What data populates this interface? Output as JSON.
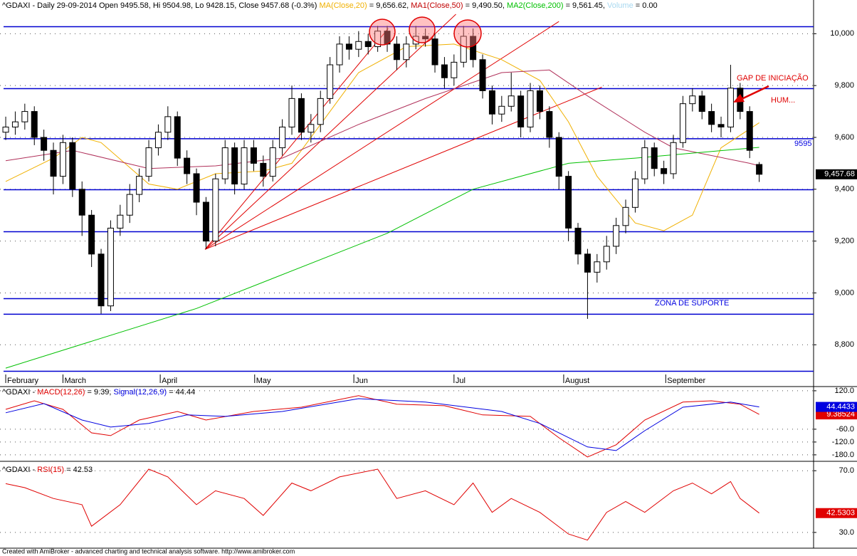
{
  "chart_data": [
    {
      "type": "candlestick",
      "title": "^GDAXI - Daily 29-09-2014 Open 9495.58, Hi 9504.98, Lo 9428.15, Close 9457.68 (-0.3%)",
      "volume_name": "Volume",
      "volume_readout": "= 0.00",
      "open": [
        9620,
        9640,
        9660,
        9700,
        9600,
        9550,
        9450,
        9580,
        9400,
        9300,
        9150,
        8950,
        9250,
        9300,
        9380,
        9450,
        9560,
        9620,
        9680,
        9520,
        9460,
        9350,
        9200,
        9440,
        9560,
        9420,
        9560,
        9500,
        9450,
        9560,
        9640,
        9750,
        9620,
        9650,
        9750,
        9880,
        9960,
        9940,
        9970,
        9950,
        10010,
        9960,
        9900,
        9960,
        9990,
        9980,
        9880,
        9830,
        9890,
        9990,
        9900,
        9780,
        9690,
        9720,
        9760,
        9640,
        9780,
        9700,
        9600,
        9450,
        9250,
        9150,
        9080,
        9120,
        9180,
        9260,
        9330,
        9440,
        9560,
        9480,
        9460,
        9580,
        9730,
        9760,
        9700,
        9650,
        9640,
        9790,
        9700,
        9495.58
      ],
      "high": [
        9680,
        9700,
        9730,
        9720,
        9630,
        9580,
        9610,
        9600,
        9430,
        9320,
        9170,
        9280,
        9340,
        9420,
        9480,
        9590,
        9650,
        9720,
        9700,
        9550,
        9480,
        9370,
        9460,
        9590,
        9580,
        9590,
        9590,
        9530,
        9590,
        9670,
        9800,
        9770,
        9690,
        9780,
        9910,
        9990,
        9990,
        10010,
        10000,
        10030,
        10030,
        9990,
        9990,
        10030,
        10020,
        10000,
        9910,
        9920,
        10030,
        10020,
        9920,
        9800,
        9760,
        9850,
        9780,
        9810,
        9800,
        9720,
        9620,
        9470,
        9270,
        9170,
        9150,
        9220,
        9290,
        9360,
        9470,
        9590,
        9580,
        9510,
        9610,
        9760,
        9790,
        9780,
        9730,
        9680,
        9880,
        9810,
        9720,
        9504.98
      ],
      "low": [
        9590,
        9610,
        9630,
        9570,
        9510,
        9380,
        9420,
        9370,
        9220,
        9100,
        8920,
        8930,
        9220,
        9270,
        9350,
        9430,
        9530,
        9590,
        9490,
        9420,
        9300,
        9170,
        9180,
        9420,
        9380,
        9400,
        9470,
        9410,
        9430,
        9530,
        9610,
        9590,
        9580,
        9620,
        9730,
        9850,
        9900,
        9910,
        9920,
        9930,
        9930,
        9860,
        9870,
        9940,
        9950,
        9850,
        9790,
        9800,
        9870,
        9870,
        9750,
        9650,
        9660,
        9700,
        9600,
        9620,
        9670,
        9560,
        9400,
        9200,
        9110,
        8900,
        9040,
        9090,
        9150,
        9230,
        9310,
        9420,
        9450,
        9420,
        9440,
        9560,
        9700,
        9670,
        9620,
        9600,
        9620,
        9670,
        9520,
        9428.15
      ],
      "close": [
        9640,
        9660,
        9700,
        9600,
        9550,
        9450,
        9580,
        9400,
        9300,
        9150,
        8950,
        9250,
        9300,
        9380,
        9450,
        9560,
        9620,
        9680,
        9520,
        9460,
        9350,
        9200,
        9440,
        9560,
        9420,
        9560,
        9500,
        9450,
        9560,
        9640,
        9750,
        9620,
        9650,
        9750,
        9880,
        9960,
        9940,
        9970,
        9950,
        10010,
        9960,
        9900,
        9960,
        9990,
        9980,
        9880,
        9830,
        9890,
        9990,
        9900,
        9780,
        9690,
        9720,
        9760,
        9640,
        9780,
        9700,
        9600,
        9450,
        9250,
        9150,
        9080,
        9120,
        9180,
        9260,
        9330,
        9440,
        9560,
        9480,
        9460,
        9580,
        9730,
        9760,
        9700,
        9650,
        9640,
        9790,
        9700,
        9550,
        9457.68
      ],
      "close_label": "9,457.68",
      "series": [
        {
          "name": "MA(Close,20)",
          "readout": "= 9,656.62,",
          "color": "#f0b000",
          "x": [
            0,
            5,
            8,
            10,
            15,
            18,
            22,
            27,
            30,
            33,
            37,
            42,
            47,
            52,
            56,
            59,
            62,
            66,
            69,
            72,
            75,
            79
          ],
          "values": [
            9430,
            9520,
            9600,
            9580,
            9420,
            9400,
            9460,
            9470,
            9500,
            9650,
            9850,
            9950,
            9960,
            9900,
            9820,
            9660,
            9450,
            9270,
            9240,
            9300,
            9560,
            9656.62
          ]
        },
        {
          "name": "MA1(Close,50)",
          "readout": "= 9,490.50,",
          "color": "#b0305a",
          "x": [
            0,
            7,
            15,
            22,
            29,
            37,
            44,
            52,
            57,
            61,
            67,
            70,
            78,
            79
          ],
          "values": [
            9510,
            9550,
            9480,
            9490,
            9520,
            9650,
            9750,
            9850,
            9860,
            9760,
            9620,
            9560,
            9500,
            9490.5
          ]
        },
        {
          "name": "MA2(Close,200)",
          "readout": "= 9,561.45,",
          "color": "#00c000",
          "x": [
            0,
            20,
            40,
            49,
            59,
            66,
            79
          ],
          "values": [
            8710,
            8940,
            9230,
            9400,
            9500,
            9520,
            9561.45
          ]
        }
      ],
      "hlines": [
        10027,
        9788,
        9595,
        9398,
        9236,
        8978,
        8918,
        8698
      ],
      "trendlines": [
        {
          "x": [
            20.9,
            40.1
          ],
          "values": [
            9168,
            10020
          ]
        },
        {
          "x": [
            20.9,
            47.2
          ],
          "values": [
            9168,
            10075
          ]
        },
        {
          "x": [
            20.9,
            58
          ],
          "values": [
            9168,
            10047
          ]
        },
        {
          "x": [
            20.9,
            62.5
          ],
          "values": [
            9168,
            9794
          ]
        }
      ],
      "annotations": [
        "GAP DE INICIAÇÃO",
        "HUM...",
        "9595",
        "ZONA DE SUPORTE"
      ],
      "xlim": [
        -0.6,
        84.7
      ],
      "xticks": [
        {
          "value": 0,
          "label": "February"
        },
        {
          "value": 6,
          "label": "March"
        },
        {
          "value": 16.2,
          "label": "April"
        },
        {
          "value": 26.1,
          "label": "May"
        },
        {
          "value": 36.5,
          "label": "Jun"
        },
        {
          "value": 47,
          "label": "Jul"
        },
        {
          "value": 58.5,
          "label": "August"
        },
        {
          "value": 69.2,
          "label": "September"
        }
      ],
      "ylim": [
        8680,
        10130
      ],
      "yticks": [
        {
          "value": 8800,
          "label": "8,800"
        },
        {
          "value": 9000,
          "label": "9,000"
        },
        {
          "value": 9200,
          "label": "9,200"
        },
        {
          "value": 9400,
          "label": "9,400"
        },
        {
          "value": 9600,
          "label": "9,600"
        },
        {
          "value": 9800,
          "label": "9,800"
        },
        {
          "value": 10000,
          "label": "10,000"
        }
      ],
      "grid": true
    },
    {
      "type": "line",
      "title": "^GDAXI -",
      "series": [
        {
          "name": "MACD(12,26)",
          "readout": "= 9.39,",
          "color": "#e00000",
          "end_label": "9.38524",
          "x": [
            0,
            3,
            6,
            9,
            11,
            14,
            18,
            21,
            26,
            31,
            37,
            41,
            46,
            50,
            55,
            58,
            61,
            64,
            67,
            71,
            74,
            77,
            79
          ],
          "values": [
            33,
            73,
            33,
            -77,
            -90,
            -17,
            23,
            -17,
            23,
            43,
            97,
            57,
            50,
            7,
            0,
            -100,
            -190,
            -133,
            -17,
            67,
            73,
            57,
            9.38524
          ]
        },
        {
          "name": "Signal(12,26,9)",
          "readout": "= 44.44",
          "color": "#0000e0",
          "end_label": "44.4433",
          "x": [
            0,
            4,
            8,
            11,
            15,
            19,
            23,
            29,
            37,
            44,
            52,
            56,
            61,
            64,
            67,
            71,
            76,
            79
          ],
          "values": [
            17,
            60,
            -17,
            -50,
            -33,
            7,
            0,
            23,
            83,
            67,
            23,
            -33,
            -143,
            -160,
            -67,
            43,
            67,
            44.4433
          ]
        }
      ],
      "xlim": [
        -0.6,
        84.7
      ],
      "ylim": [
        -207,
        133
      ],
      "yticks": [
        {
          "value": 120,
          "label": "120.0"
        },
        {
          "value": -60,
          "label": "-60.0"
        },
        {
          "value": -120,
          "label": "-120.0"
        },
        {
          "value": -180,
          "label": "-180.0"
        }
      ],
      "grid": true
    },
    {
      "type": "line",
      "title": "^GDAXI -",
      "series": [
        {
          "name": "RSI(15)",
          "readout": "= 42.53",
          "color": "#e00000",
          "end_label": "42.5303",
          "x": [
            0,
            2,
            5,
            8,
            9,
            12,
            15,
            17,
            20,
            22,
            25,
            27,
            30,
            32,
            35,
            39,
            41,
            44,
            47,
            49,
            51,
            53,
            56,
            59,
            61,
            63,
            65,
            67,
            70,
            72,
            74,
            76,
            77,
            79
          ],
          "values": [
            61.6,
            59,
            52,
            48,
            34,
            48,
            71,
            66,
            48,
            57,
            52,
            41,
            62,
            57,
            66,
            71,
            52,
            57,
            48,
            62,
            43,
            52,
            43,
            29,
            25,
            43,
            50,
            43,
            57,
            62,
            55,
            63,
            52,
            42.5303
          ]
        }
      ],
      "xlim": [
        -0.6,
        84.7
      ],
      "ylim": [
        19.8,
        74.7
      ],
      "yticks": [
        {
          "value": 70,
          "label": "70.0"
        },
        {
          "value": 30,
          "label": "30.0"
        }
      ],
      "grid": true
    }
  ],
  "footer": "Created with AmiBroker - advanced charting and technical analysis software. http://www.amibroker.com"
}
